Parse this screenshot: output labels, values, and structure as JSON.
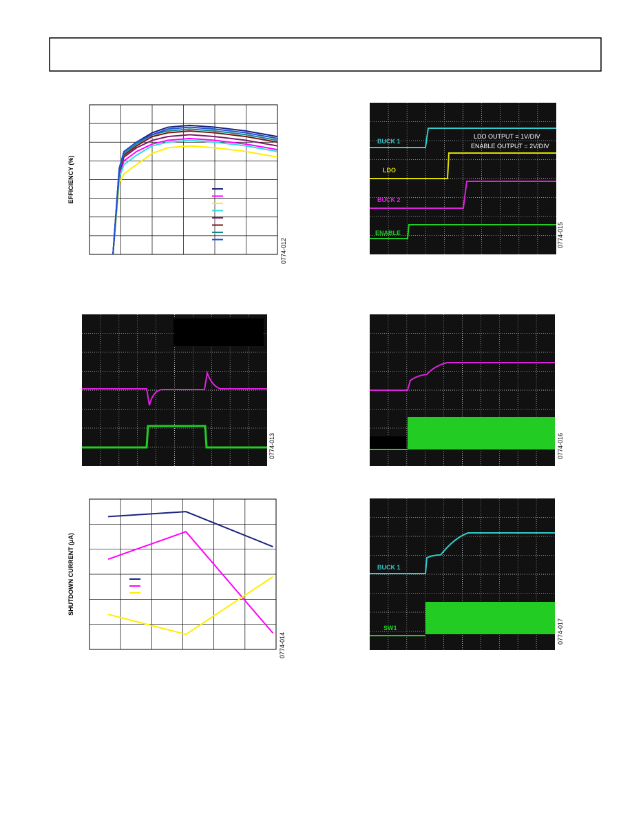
{
  "figures": [
    {
      "type": "line",
      "y_label": "EFFICIENCY (%)",
      "code": "0774-012",
      "grid_x": 6,
      "grid_y": 8,
      "x": [
        0.75,
        0.95,
        1.1,
        1.5,
        2,
        2.5,
        3.2,
        4,
        5,
        6
      ],
      "series": [
        {
          "color": "#1a237e",
          "values": [
            0,
            4.6,
            5.5,
            6.0,
            6.5,
            6.8,
            6.9,
            6.8,
            6.6,
            6.3
          ]
        },
        {
          "color": "#ff00ff",
          "values": [
            0,
            4.3,
            5.0,
            5.5,
            5.9,
            6.1,
            6.2,
            6.1,
            5.9,
            5.6
          ]
        },
        {
          "color": "#ffee00",
          "values": [
            0,
            3.8,
            4.3,
            4.8,
            5.4,
            5.7,
            5.8,
            5.7,
            5.5,
            5.2
          ]
        },
        {
          "color": "#33dddd",
          "values": [
            0,
            4.1,
            4.8,
            5.3,
            5.8,
            6.0,
            6.1,
            6.0,
            5.8,
            5.5
          ]
        },
        {
          "color": "#7b1a6b",
          "values": [
            0,
            4.4,
            5.2,
            5.7,
            6.1,
            6.3,
            6.4,
            6.3,
            6.1,
            5.8
          ]
        },
        {
          "color": "#7a1414",
          "values": [
            0,
            4.5,
            5.3,
            5.8,
            6.3,
            6.5,
            6.6,
            6.5,
            6.3,
            6.0
          ]
        },
        {
          "color": "#118888",
          "values": [
            0,
            4.5,
            5.4,
            5.9,
            6.4,
            6.6,
            6.7,
            6.6,
            6.4,
            6.1
          ]
        },
        {
          "color": "#1f4fd6",
          "values": [
            0,
            4.6,
            5.5,
            6.0,
            6.4,
            6.7,
            6.8,
            6.7,
            6.5,
            6.2
          ]
        }
      ]
    },
    {
      "type": "scope",
      "code": "0774-015",
      "labels": [
        "BUCK 1",
        "LDO OUTPUT = 1V/DIV",
        "ENABLE OUTPUT = 2V/DIV",
        "LDO",
        "BUCK 2",
        "ENABLE"
      ]
    },
    {
      "type": "scope",
      "code": "0774-013",
      "labels": []
    },
    {
      "type": "scope",
      "code": "0774-016",
      "labels": []
    },
    {
      "type": "line",
      "y_label": "SHUTDOWN CURRENT (µA)",
      "code": "0774-014",
      "grid_x": 6,
      "grid_y": 6,
      "x": [
        0.6,
        3.1,
        5.9
      ],
      "series": [
        {
          "color": "#1a237e",
          "values": [
            5.3,
            5.5,
            4.1
          ]
        },
        {
          "color": "#ff00ff",
          "values": [
            3.6,
            4.7,
            0.65
          ]
        },
        {
          "color": "#ffee00",
          "values": [
            1.4,
            0.6,
            2.9
          ]
        }
      ]
    },
    {
      "type": "scope",
      "code": "0774-017",
      "labels": [
        "BUCK 1",
        "SW1"
      ]
    }
  ]
}
